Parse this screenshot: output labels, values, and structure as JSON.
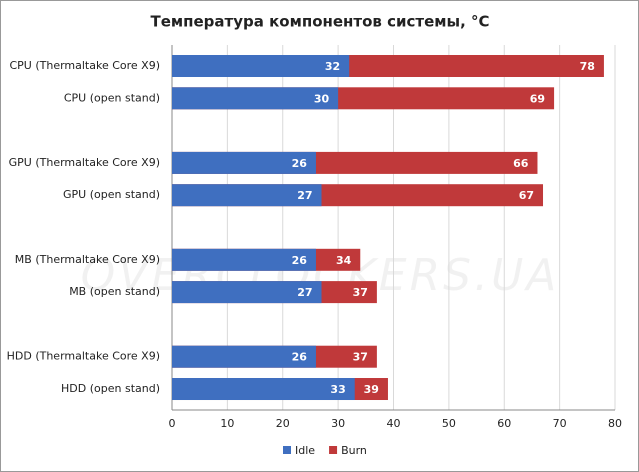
{
  "chart_data": {
    "type": "bar",
    "orientation": "horizontal",
    "overlap": true,
    "title": "Температура компонентов системы, °C",
    "watermark": "OVERCLOCKERS.UA",
    "categories": [
      "CPU (Thermaltake Core X9)",
      "CPU (open stand)",
      "GPU (Thermaltake Core X9)",
      "GPU (open stand)",
      "MB (Thermaltake Core X9)",
      "MB (open stand)",
      "HDD (Thermaltake Core X9)",
      "HDD (open stand)"
    ],
    "series": [
      {
        "name": "Idle",
        "color": "#3f6fc0",
        "values": [
          32,
          30,
          26,
          27,
          26,
          27,
          26,
          33
        ]
      },
      {
        "name": "Burn",
        "color": "#c0393a",
        "values": [
          78,
          69,
          66,
          67,
          34,
          37,
          37,
          39
        ]
      }
    ],
    "xlim": [
      0,
      80
    ],
    "xticks": [
      0,
      10,
      20,
      30,
      40,
      50,
      60,
      70,
      80
    ],
    "grid": true,
    "legend": "bottom"
  }
}
